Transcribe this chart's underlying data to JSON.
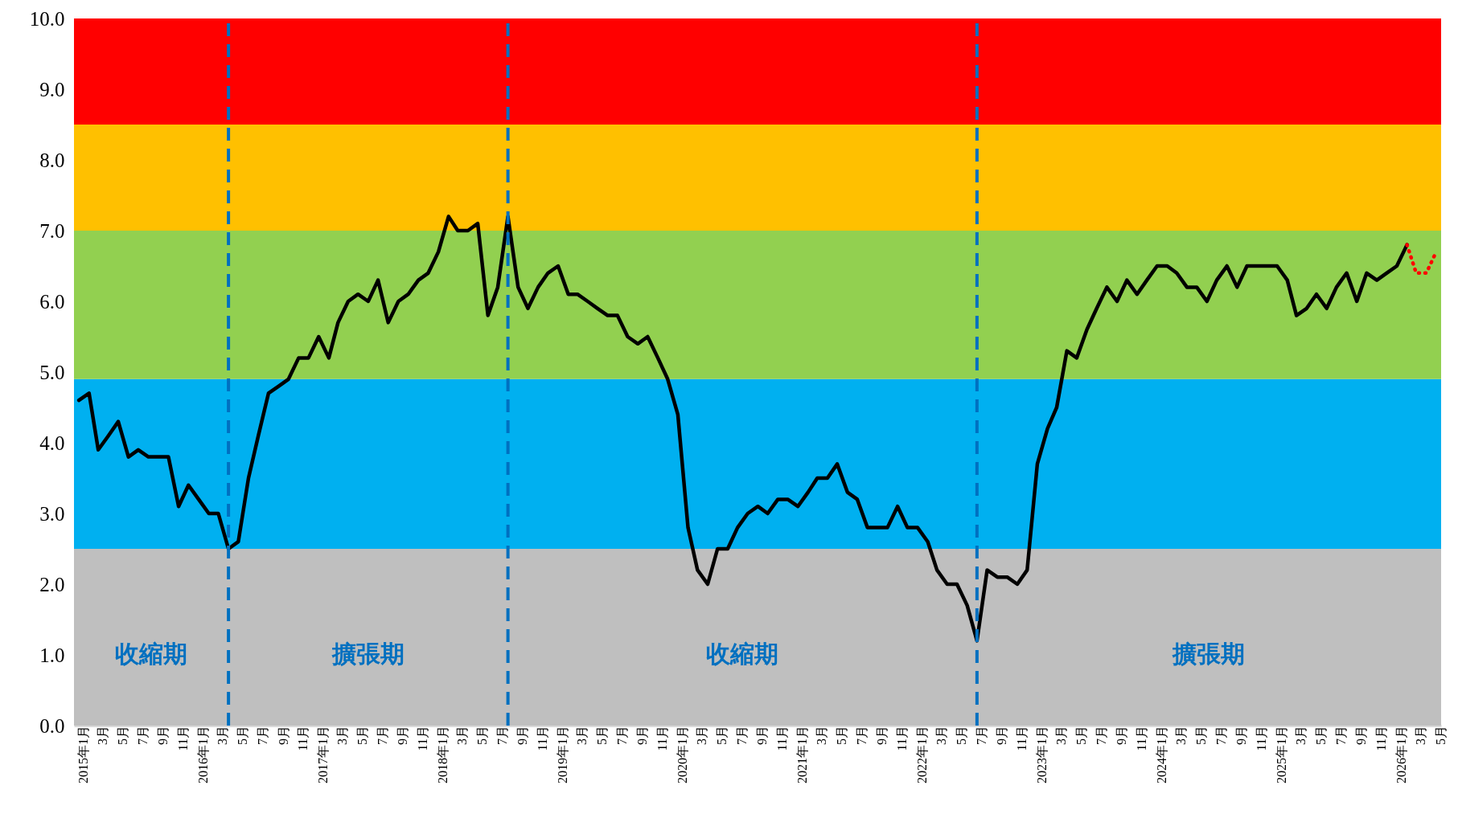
{
  "chart_data": {
    "type": "line",
    "x": [
      "2015-01",
      "2015-02",
      "2015-03",
      "2015-04",
      "2015-05",
      "2015-06",
      "2015-07",
      "2015-08",
      "2015-09",
      "2015-10",
      "2015-11",
      "2015-12",
      "2016-01",
      "2016-02",
      "2016-03",
      "2016-04",
      "2016-05",
      "2016-06",
      "2016-07",
      "2016-08",
      "2016-09",
      "2016-10",
      "2016-11",
      "2016-12",
      "2017-01",
      "2017-02",
      "2017-03",
      "2017-04",
      "2017-05",
      "2017-06",
      "2017-07",
      "2017-08",
      "2017-09",
      "2017-10",
      "2017-11",
      "2017-12",
      "2018-01",
      "2018-02",
      "2018-03",
      "2018-04",
      "2018-05",
      "2018-06",
      "2018-07",
      "2018-08",
      "2018-09",
      "2018-10",
      "2018-11",
      "2018-12",
      "2019-01",
      "2019-02",
      "2019-03",
      "2019-04",
      "2019-05",
      "2019-06",
      "2019-07",
      "2019-08",
      "2019-09",
      "2019-10",
      "2019-11",
      "2019-12",
      "2020-01",
      "2020-02",
      "2020-03",
      "2020-04",
      "2020-05",
      "2020-06",
      "2020-07",
      "2020-08",
      "2020-09",
      "2020-10",
      "2020-11",
      "2020-12",
      "2021-01",
      "2021-02",
      "2021-03",
      "2021-04",
      "2021-05",
      "2021-06",
      "2021-07",
      "2021-08",
      "2021-09",
      "2021-10",
      "2021-11",
      "2021-12",
      "2022-01",
      "2022-02",
      "2022-03",
      "2022-04",
      "2022-05",
      "2022-06",
      "2022-07",
      "2022-08",
      "2022-09",
      "2022-10",
      "2022-11",
      "2022-12",
      "2023-01",
      "2023-02",
      "2023-03",
      "2023-04",
      "2023-05",
      "2023-06",
      "2023-07",
      "2023-08",
      "2023-09",
      "2023-10",
      "2023-11",
      "2023-12",
      "2024-01",
      "2024-02",
      "2024-03",
      "2024-04",
      "2024-05",
      "2024-06",
      "2024-07",
      "2024-08",
      "2024-09",
      "2024-10",
      "2024-11",
      "2024-12",
      "2025-01",
      "2025-02",
      "2025-03",
      "2025-04",
      "2025-05",
      "2025-06",
      "2025-07",
      "2025-08",
      "2025-09",
      "2025-10",
      "2025-11",
      "2025-12",
      "2026-01",
      "2026-02",
      "2026-03",
      "2026-04",
      "2026-05"
    ],
    "series": [
      {
        "color": "#000000",
        "line_style": "solid",
        "values": [
          4.6,
          4.7,
          3.9,
          4.1,
          4.3,
          3.8,
          3.9,
          3.8,
          3.8,
          3.8,
          3.1,
          3.4,
          3.2,
          3.0,
          3.0,
          2.5,
          2.6,
          3.5,
          4.1,
          4.7,
          4.8,
          4.9,
          5.2,
          5.2,
          5.5,
          5.2,
          5.7,
          6.0,
          6.1,
          6.0,
          6.3,
          5.7,
          6.0,
          6.1,
          6.3,
          6.4,
          6.7,
          7.2,
          7.0,
          7.0,
          7.1,
          5.8,
          6.2,
          7.2,
          6.2,
          5.9,
          6.2,
          6.4,
          6.5,
          6.1,
          6.1,
          6.0,
          5.9,
          5.8,
          5.8,
          5.5,
          5.4,
          5.5,
          5.2,
          4.9,
          4.4,
          2.8,
          2.2,
          2.0,
          2.5,
          2.5,
          2.8,
          3.0,
          3.1,
          3.0,
          3.2,
          3.2,
          3.1,
          3.3,
          3.5,
          3.5,
          3.7,
          3.3,
          3.2,
          2.8,
          2.8,
          2.8,
          3.1,
          2.8,
          2.8,
          2.6,
          2.2,
          2.0,
          2.0,
          1.7,
          1.2,
          2.2,
          2.1,
          2.1,
          2.0,
          2.2,
          3.7,
          4.2,
          4.5,
          5.3,
          5.2,
          5.6,
          5.9,
          6.2,
          6.0,
          6.3,
          6.1,
          6.3,
          6.5,
          6.5,
          6.4,
          6.2,
          6.2,
          6.0,
          6.3,
          6.5,
          6.2,
          6.5,
          6.5,
          6.5,
          6.5,
          6.3,
          5.8,
          5.9,
          6.1,
          5.9,
          6.2,
          6.4,
          6.0,
          6.4,
          6.3,
          6.4,
          6.5,
          6.8,
          null,
          null,
          null
        ]
      },
      {
        "color": "#ff0000",
        "line_style": "dotted",
        "values": [
          null,
          null,
          null,
          null,
          null,
          null,
          null,
          null,
          null,
          null,
          null,
          null,
          null,
          null,
          null,
          null,
          null,
          null,
          null,
          null,
          null,
          null,
          null,
          null,
          null,
          null,
          null,
          null,
          null,
          null,
          null,
          null,
          null,
          null,
          null,
          null,
          null,
          null,
          null,
          null,
          null,
          null,
          null,
          null,
          null,
          null,
          null,
          null,
          null,
          null,
          null,
          null,
          null,
          null,
          null,
          null,
          null,
          null,
          null,
          null,
          null,
          null,
          null,
          null,
          null,
          null,
          null,
          null,
          null,
          null,
          null,
          null,
          null,
          null,
          null,
          null,
          null,
          null,
          null,
          null,
          null,
          null,
          null,
          null,
          null,
          null,
          null,
          null,
          null,
          null,
          null,
          null,
          null,
          null,
          null,
          null,
          null,
          null,
          null,
          null,
          null,
          null,
          null,
          null,
          null,
          null,
          null,
          null,
          null,
          null,
          null,
          null,
          null,
          null,
          null,
          null,
          null,
          null,
          null,
          null,
          null,
          null,
          null,
          null,
          null,
          null,
          null,
          null,
          null,
          null,
          null,
          null,
          null,
          6.8,
          6.4,
          6.4,
          6.7
        ]
      }
    ],
    "xlim": [
      "2014-12-17",
      "2026-05-16"
    ],
    "xticks": [
      {
        "value": "2015-01",
        "label": "2015年1月"
      },
      {
        "value": "2015-03",
        "label": "3月"
      },
      {
        "value": "2015-05",
        "label": "5月"
      },
      {
        "value": "2015-07",
        "label": "7月"
      },
      {
        "value": "2015-09",
        "label": "9月"
      },
      {
        "value": "2015-11",
        "label": "11月"
      },
      {
        "value": "2016-01",
        "label": "2016年1月"
      },
      {
        "value": "2016-03",
        "label": "3月"
      },
      {
        "value": "2016-05",
        "label": "5月"
      },
      {
        "value": "2016-07",
        "label": "7月"
      },
      {
        "value": "2016-09",
        "label": "9月"
      },
      {
        "value": "2016-11",
        "label": "11月"
      },
      {
        "value": "2017-01",
        "label": "2017年1月"
      },
      {
        "value": "2017-03",
        "label": "3月"
      },
      {
        "value": "2017-05",
        "label": "5月"
      },
      {
        "value": "2017-07",
        "label": "7月"
      },
      {
        "value": "2017-09",
        "label": "9月"
      },
      {
        "value": "2017-11",
        "label": "11月"
      },
      {
        "value": "2018-01",
        "label": "2018年1月"
      },
      {
        "value": "2018-03",
        "label": "3月"
      },
      {
        "value": "2018-05",
        "label": "5月"
      },
      {
        "value": "2018-07",
        "label": "7月"
      },
      {
        "value": "2018-09",
        "label": "9月"
      },
      {
        "value": "2018-11",
        "label": "11月"
      },
      {
        "value": "2019-01",
        "label": "2019年1月"
      },
      {
        "value": "2019-03",
        "label": "3月"
      },
      {
        "value": "2019-05",
        "label": "5月"
      },
      {
        "value": "2019-07",
        "label": "7月"
      },
      {
        "value": "2019-09",
        "label": "9月"
      },
      {
        "value": "2019-11",
        "label": "11月"
      },
      {
        "value": "2020-01",
        "label": "2020年1月"
      },
      {
        "value": "2020-03",
        "label": "3月"
      },
      {
        "value": "2020-05",
        "label": "5月"
      },
      {
        "value": "2020-07",
        "label": "7月"
      },
      {
        "value": "2020-09",
        "label": "9月"
      },
      {
        "value": "2020-11",
        "label": "11月"
      },
      {
        "value": "2021-01",
        "label": "2021年1月"
      },
      {
        "value": "2021-03",
        "label": "3月"
      },
      {
        "value": "2021-05",
        "label": "5月"
      },
      {
        "value": "2021-07",
        "label": "7月"
      },
      {
        "value": "2021-09",
        "label": "9月"
      },
      {
        "value": "2021-11",
        "label": "11月"
      },
      {
        "value": "2022-01",
        "label": "2022年1月"
      },
      {
        "value": "2022-03",
        "label": "3月"
      },
      {
        "value": "2022-05",
        "label": "5月"
      },
      {
        "value": "2022-07",
        "label": "7月"
      },
      {
        "value": "2022-09",
        "label": "9月"
      },
      {
        "value": "2022-11",
        "label": "11月"
      },
      {
        "value": "2023-01",
        "label": "2023年1月"
      },
      {
        "value": "2023-03",
        "label": "3月"
      },
      {
        "value": "2023-05",
        "label": "5月"
      },
      {
        "value": "2023-07",
        "label": "7月"
      },
      {
        "value": "2023-09",
        "label": "9月"
      },
      {
        "value": "2023-11",
        "label": "11月"
      },
      {
        "value": "2024-01",
        "label": "2024年1月"
      },
      {
        "value": "2024-03",
        "label": "3月"
      },
      {
        "value": "2024-05",
        "label": "5月"
      },
      {
        "value": "2024-07",
        "label": "7月"
      },
      {
        "value": "2024-09",
        "label": "9月"
      },
      {
        "value": "2024-11",
        "label": "11月"
      },
      {
        "value": "2025-01",
        "label": "2025年1月"
      },
      {
        "value": "2025-03",
        "label": "3月"
      },
      {
        "value": "2025-05",
        "label": "5月"
      },
      {
        "value": "2025-07",
        "label": "7月"
      },
      {
        "value": "2025-09",
        "label": "9月"
      },
      {
        "value": "2025-11",
        "label": "11月"
      },
      {
        "value": "2026-01",
        "label": "2026年1月"
      },
      {
        "value": "2026-03",
        "label": "3月"
      },
      {
        "value": "2026-05",
        "label": "5月"
      }
    ],
    "ylim": [
      0,
      10
    ],
    "yticks": [
      {
        "value": 0,
        "label": "0.0"
      },
      {
        "value": 1,
        "label": "1.0"
      },
      {
        "value": 2,
        "label": "2.0"
      },
      {
        "value": 3,
        "label": "3.0"
      },
      {
        "value": 4,
        "label": "4.0"
      },
      {
        "value": 5,
        "label": "5.0"
      },
      {
        "value": 6,
        "label": "6.0"
      },
      {
        "value": 7,
        "label": "7.0"
      },
      {
        "value": 8,
        "label": "8.0"
      },
      {
        "value": 9,
        "label": "9.0"
      },
      {
        "value": 10,
        "label": "10.0"
      }
    ],
    "bands": [
      {
        "axis": "y",
        "from": 0,
        "to": 2.5,
        "color": "#bfbfbf"
      },
      {
        "axis": "y",
        "from": 2.5,
        "to": 4.9,
        "color": "#00b0f0"
      },
      {
        "axis": "y",
        "from": 4.9,
        "to": 7.0,
        "color": "#92d050"
      },
      {
        "axis": "y",
        "from": 7.0,
        "to": 8.5,
        "color": "#ffc000"
      },
      {
        "axis": "y",
        "from": 8.5,
        "to": 10,
        "color": "#ff0000"
      }
    ],
    "annotations": [
      "收縮期",
      "擴張期",
      "收縮期",
      "擴張期"
    ],
    "ref_lines": [
      {
        "axis": "x",
        "value": "2016-04",
        "color": "#0070c0",
        "line_style": "dashed"
      },
      {
        "axis": "x",
        "value": "2018-08",
        "color": "#0070c0",
        "line_style": "dashed"
      },
      {
        "axis": "x",
        "value": "2022-07",
        "color": "#0070c0",
        "line_style": "dashed"
      }
    ],
    "grid": false
  }
}
